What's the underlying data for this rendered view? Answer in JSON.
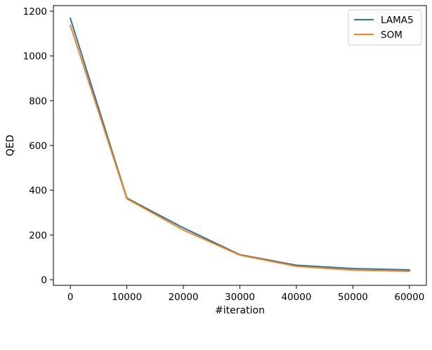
{
  "chart_data": {
    "type": "line",
    "title": "",
    "xlabel": "#iteration",
    "ylabel": "QED",
    "xlim": [
      -3000,
      63000
    ],
    "ylim": [
      -25,
      1225
    ],
    "xticks": [
      0,
      10000,
      20000,
      30000,
      40000,
      50000,
      60000
    ],
    "xtick_labels": [
      "0",
      "10000",
      "20000",
      "30000",
      "40000",
      "50000",
      "60000"
    ],
    "yticks": [
      0,
      200,
      400,
      600,
      800,
      1000,
      1200
    ],
    "ytick_labels": [
      "0",
      "200",
      "400",
      "600",
      "800",
      "1000",
      "1200"
    ],
    "grid": false,
    "legend_position": "top-right",
    "x": [
      0,
      10000,
      20000,
      30000,
      40000,
      50000,
      60000
    ],
    "series": [
      {
        "name": "LAMA5",
        "color": "#1f77b4",
        "values": [
          1168,
          365,
          232,
          112,
          65,
          50,
          44
        ]
      },
      {
        "name": "SOM",
        "color": "#ff7f0e",
        "values": [
          1137,
          362,
          222,
          110,
          60,
          43,
          38
        ]
      }
    ]
  }
}
